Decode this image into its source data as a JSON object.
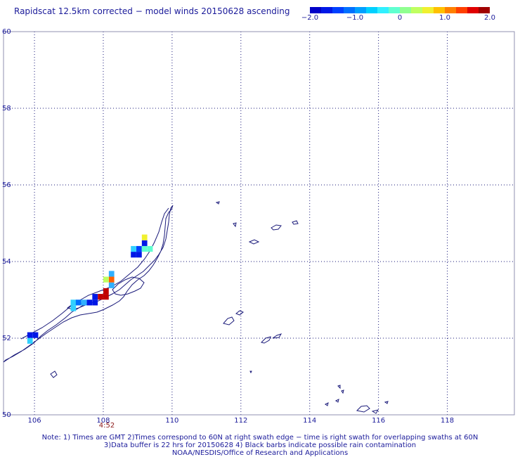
{
  "title": "Rapidscat 12.5km corrected − model winds 20150628 ascending",
  "colorbar": {
    "labels": [
      "−2.0",
      "−1.0",
      "0",
      "1.0",
      "2.0"
    ],
    "colors": [
      "#0000c8",
      "#0018e6",
      "#0040ff",
      "#0070ff",
      "#00a0ff",
      "#00d0ff",
      "#30f0ff",
      "#60ffd0",
      "#90ff90",
      "#c0ff60",
      "#f0f030",
      "#ffc000",
      "#ff8000",
      "#ff4000",
      "#e00000",
      "#a00000"
    ]
  },
  "axes": {
    "x_ticks": [
      "106",
      "108",
      "110",
      "112",
      "114",
      "116",
      "118"
    ],
    "y_ticks": [
      "50",
      "52",
      "54",
      "56",
      "58",
      "60"
    ]
  },
  "swath_time": "4:52",
  "wind_cells": [
    {
      "lon": 105.87,
      "lat": 52.08,
      "color": "#0018e6"
    },
    {
      "lon": 106.03,
      "lat": 52.08,
      "color": "#0018e6"
    },
    {
      "lon": 105.87,
      "lat": 51.93,
      "color": "#30d0ff"
    },
    {
      "lon": 107.13,
      "lat": 52.93,
      "color": "#30d0ff"
    },
    {
      "lon": 107.13,
      "lat": 52.78,
      "color": "#30d0ff"
    },
    {
      "lon": 107.28,
      "lat": 52.93,
      "color": "#0070ff"
    },
    {
      "lon": 107.44,
      "lat": 52.93,
      "color": "#30b0ff"
    },
    {
      "lon": 107.6,
      "lat": 52.93,
      "color": "#0018e6"
    },
    {
      "lon": 107.76,
      "lat": 52.93,
      "color": "#0018e6"
    },
    {
      "lon": 107.76,
      "lat": 53.08,
      "color": "#0018e6"
    },
    {
      "lon": 107.92,
      "lat": 53.08,
      "color": "#c00000"
    },
    {
      "lon": 108.08,
      "lat": 53.08,
      "color": "#c00000"
    },
    {
      "lon": 108.08,
      "lat": 53.23,
      "color": "#c00000"
    },
    {
      "lon": 108.24,
      "lat": 53.38,
      "color": "#30b0ff"
    },
    {
      "lon": 108.24,
      "lat": 53.53,
      "color": "#ff6000"
    },
    {
      "lon": 108.08,
      "lat": 53.53,
      "color": "#c0ff60"
    },
    {
      "lon": 108.24,
      "lat": 53.68,
      "color": "#30b0ff"
    },
    {
      "lon": 108.88,
      "lat": 54.18,
      "color": "#0018e6"
    },
    {
      "lon": 109.04,
      "lat": 54.18,
      "color": "#0018e6"
    },
    {
      "lon": 108.88,
      "lat": 54.33,
      "color": "#30d0ff"
    },
    {
      "lon": 109.04,
      "lat": 54.33,
      "color": "#0040ff"
    },
    {
      "lon": 109.2,
      "lat": 54.33,
      "color": "#60ffd0"
    },
    {
      "lon": 109.36,
      "lat": 54.33,
      "color": "#60ffd0"
    },
    {
      "lon": 109.2,
      "lat": 54.48,
      "color": "#0018e6"
    },
    {
      "lon": 109.2,
      "lat": 54.63,
      "color": "#f0f030"
    }
  ],
  "notes": [
    "Note: 1) Times are GMT 2)Times correspond to 60N at right swath edge − time is right swath for overlapping swaths at 60N",
    "3)Data buffer is 22 hrs for 20150628 4) Black barbs indicate possible rain contamination",
    "NOAA/NESDIS/Office of Research and Applications"
  ]
}
